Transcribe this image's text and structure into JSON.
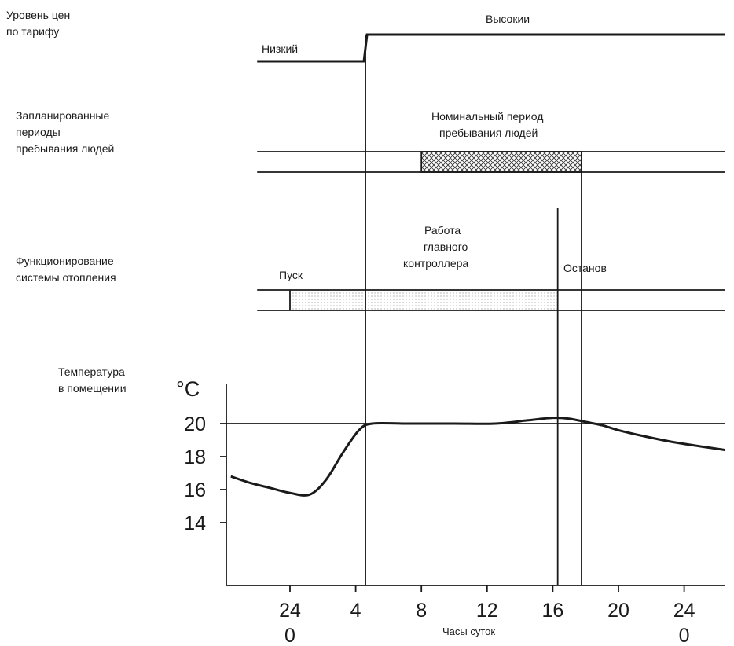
{
  "chart_data": {
    "type": "line",
    "xlabel": "Часы суток",
    "ylabel": "°C",
    "x_ticks": [
      {
        "x": 24,
        "label": "24",
        "sub": "0"
      },
      {
        "x": 28,
        "label": "4"
      },
      {
        "x": 32,
        "label": "8"
      },
      {
        "x": 36,
        "label": "12"
      },
      {
        "x": 40,
        "label": "16"
      },
      {
        "x": 44,
        "label": "20"
      },
      {
        "x": 48,
        "label": "24",
        "sub": "0"
      }
    ],
    "y_ticks": [
      14,
      16,
      18,
      20
    ],
    "xlim": [
      20.2,
      50.5
    ],
    "ylim": [
      10,
      22.6
    ],
    "reference_line": {
      "y": 20
    },
    "temperature_series": {
      "name": "",
      "points": [
        [
          20.4,
          16.8
        ],
        [
          21.6,
          16.4
        ],
        [
          22.8,
          16.1
        ],
        [
          24.0,
          15.8
        ],
        [
          25.2,
          15.7
        ],
        [
          26.2,
          16.6
        ],
        [
          27.2,
          18.2
        ],
        [
          28.2,
          19.6
        ],
        [
          29.0,
          20.0
        ],
        [
          31.0,
          20.0
        ],
        [
          34.0,
          20.0
        ],
        [
          36.5,
          20.0
        ],
        [
          38.5,
          20.2
        ],
        [
          40.0,
          20.35
        ],
        [
          41.0,
          20.3
        ],
        [
          42.0,
          20.1
        ],
        [
          43.0,
          19.9
        ],
        [
          44.0,
          19.6
        ],
        [
          45.5,
          19.25
        ],
        [
          47.5,
          18.85
        ],
        [
          50.5,
          18.4
        ]
      ]
    },
    "rows": {
      "tariff": {
        "label_lines": [
          "Уровень цен",
          "по тарифу"
        ],
        "low_label": "Низкий",
        "high_label": "Высокии",
        "switch_x": 28.5,
        "low_start_x": 22.0
      },
      "occupancy": {
        "label_lines": [
          "Запланированные",
          "периоды",
          "пребывания людей"
        ],
        "band_label_lines": [
          "Номинальный период",
          "пребывания людей"
        ],
        "start_x": 32.0,
        "end_x": 41.75,
        "band_start_x": 22.0
      },
      "heating": {
        "label_lines": [
          "Функционирование",
          "системы отопления"
        ],
        "start_label": "Пуск",
        "start_x": 24.0,
        "controller_label_lines": [
          "Работа",
          "главного",
          "контроллера"
        ],
        "stop_label": "Останов",
        "stop_x": 40.3,
        "band_start_x": 22.0
      },
      "room_temperature": {
        "label_lines": [
          "Температура",
          "в помещении"
        ]
      }
    },
    "vertical_markers": [
      28.5,
      40.3,
      41.75
    ]
  }
}
